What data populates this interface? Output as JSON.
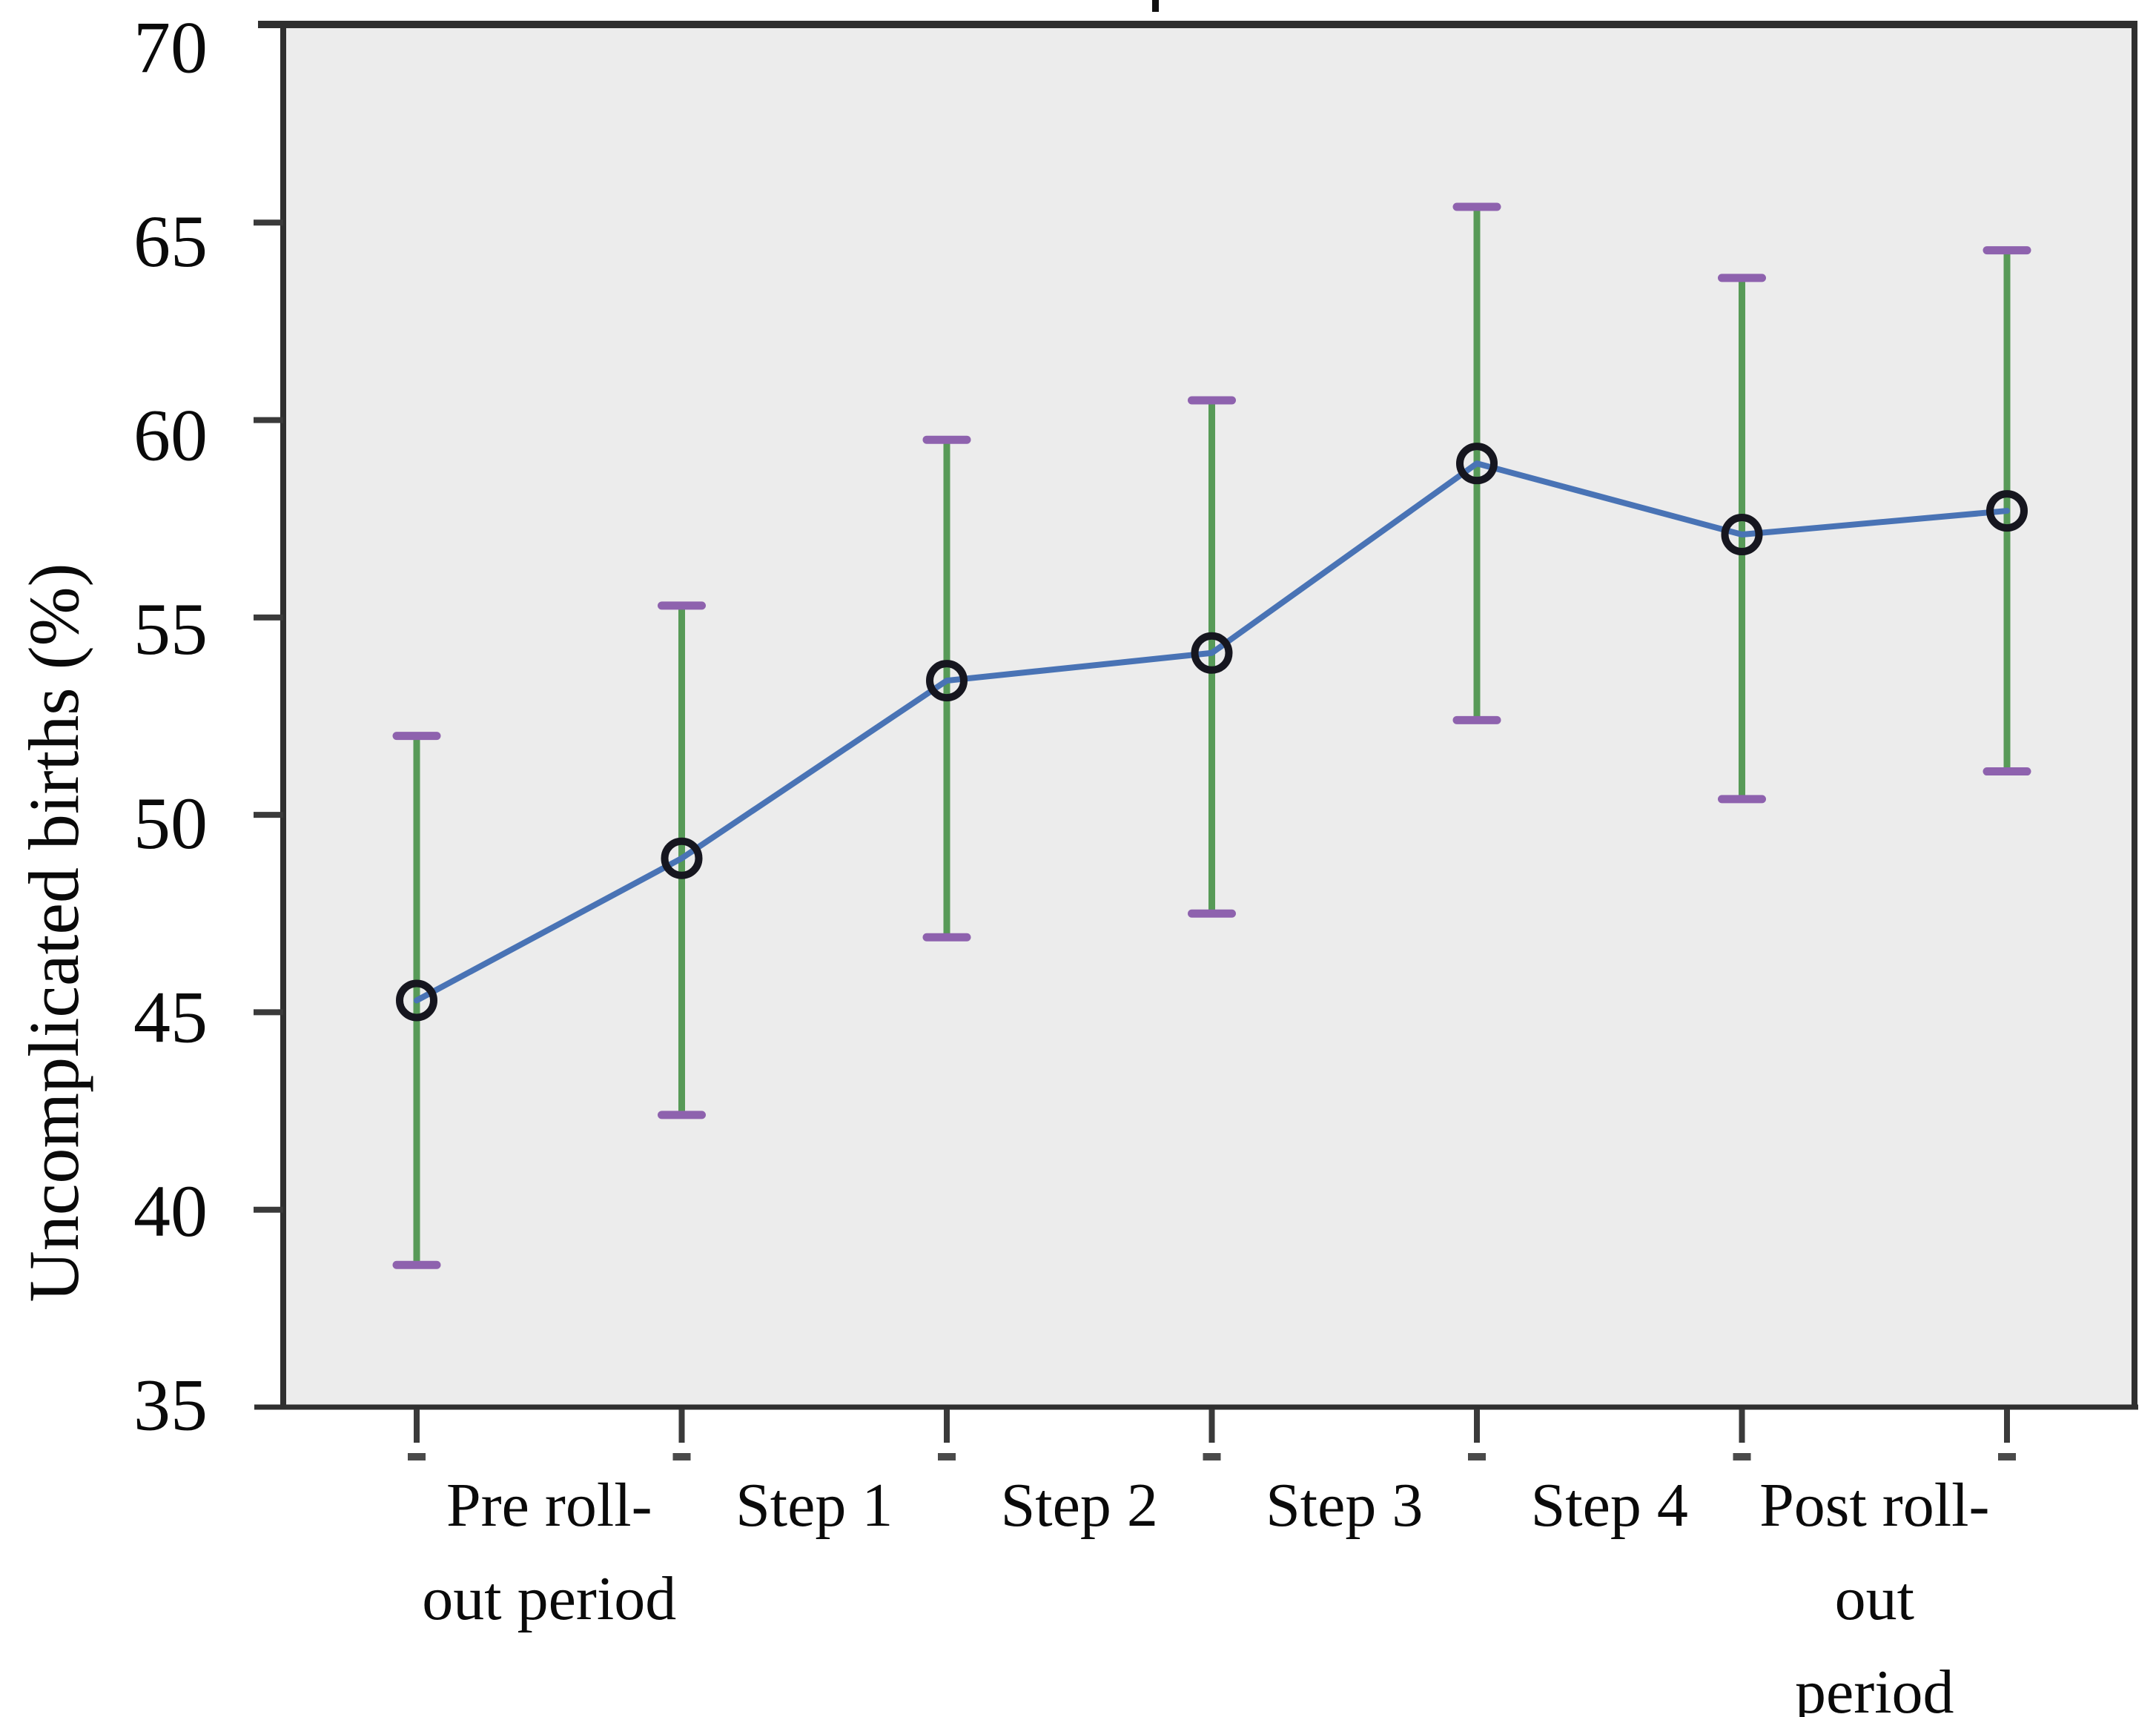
{
  "chart_data": {
    "type": "line",
    "title": "",
    "note": "Title is cropped out of the screenshot; only a tiny fragment of a glyph remains at the top center. 7 plotted time points with 95% CI error bars; the 6 category labels sit between adjacent tick marks.",
    "ylabel": "Uncomplicated births (%)",
    "xlabel": "",
    "ylim": [
      35,
      70
    ],
    "yticks": [
      70,
      65,
      60,
      55,
      50,
      45,
      40,
      35
    ],
    "grid": false,
    "legend_position": "none",
    "plot_background": "#ececec",
    "n_time_points": 7,
    "categories": [
      "Pre roll-out period",
      "Step 1",
      "Step 2",
      "Step 3",
      "Step 4",
      "Post roll-out period"
    ],
    "category_label_lines": [
      [
        "Pre roll-",
        "out period"
      ],
      [
        "Step 1"
      ],
      [
        "Step 2"
      ],
      [
        "Step 3"
      ],
      [
        "Step 4"
      ],
      [
        "Post roll-",
        "out",
        "period"
      ]
    ],
    "series": [
      {
        "name": "Uncomplicated births (%)",
        "values": [
          45.3,
          48.9,
          53.4,
          54.1,
          58.9,
          57.1,
          57.7
        ],
        "ci_low": [
          38.6,
          42.4,
          46.9,
          47.5,
          52.4,
          50.4,
          51.1
        ],
        "ci_high": [
          52.0,
          55.3,
          59.5,
          60.5,
          65.4,
          63.6,
          64.3
        ]
      }
    ],
    "colors": {
      "line": "#4973b5",
      "error_bar": "#579a57",
      "error_cap": "#8e62ae",
      "marker_ring": "#16161f",
      "axis": "#2f2f2f",
      "tick": "#3a3a3a",
      "sub_tick": "#4a4a4a",
      "text": "#0a0a0a"
    }
  }
}
